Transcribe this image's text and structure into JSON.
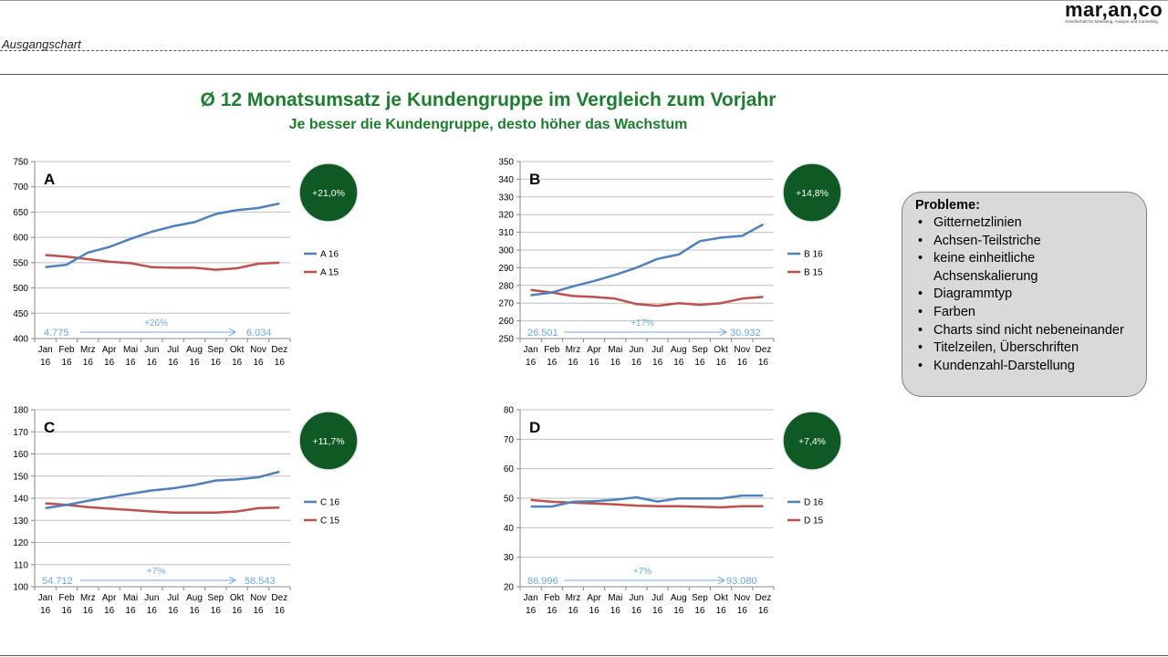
{
  "header": {
    "section_label": "Ausgangschart",
    "logo_text": "mar,an,co",
    "logo_subtitle": "Gesellschaft für Marketing, Analyse und Consulting"
  },
  "title": "Ø 12 Monatsumsatz je Kundengruppe im Vergleich zum Vorjahr",
  "subtitle": "Je besser die Kundengruppe, desto höher das Wachstum",
  "colors": {
    "series_current": "#4f81bd",
    "series_previous": "#c0504d",
    "badge_fill": "#0f5a24",
    "title_green": "#1e7d2f",
    "arrow_text": "#6fa8e0",
    "grid": "#bfbfbf"
  },
  "chart_data": [
    {
      "type": "line",
      "panel_label": "A",
      "categories": [
        "Jan 16",
        "Feb 16",
        "Mrz 16",
        "Apr 16",
        "Mai 16",
        "Jun 16",
        "Jul 16",
        "Aug 16",
        "Sep 16",
        "Okt 16",
        "Nov 16",
        "Dez 16"
      ],
      "ylim": [
        400,
        750
      ],
      "yticks": [
        400,
        450,
        500,
        550,
        600,
        650,
        700,
        750
      ],
      "grid": true,
      "legend_position": "right",
      "series": [
        {
          "name": "A 16",
          "values": [
            541,
            546,
            570,
            581,
            597,
            611,
            622,
            630,
            646,
            654,
            658,
            667
          ]
        },
        {
          "name": "A 15",
          "values": [
            565,
            562,
            557,
            552,
            549,
            541,
            540,
            540,
            536,
            539,
            548,
            550
          ]
        }
      ],
      "badge": "+21,0%",
      "annotation": {
        "start": "4.775",
        "label": "+26%",
        "end": "6.034"
      }
    },
    {
      "type": "line",
      "panel_label": "B",
      "categories": [
        "Jan 16",
        "Feb 16",
        "Mrz 16",
        "Apr 16",
        "Mai 16",
        "Jun 16",
        "Jul 16",
        "Aug 16",
        "Sep 16",
        "Okt 16",
        "Nov 16",
        "Dez 16"
      ],
      "ylim": [
        250,
        350
      ],
      "yticks": [
        250,
        260,
        270,
        280,
        290,
        300,
        310,
        320,
        330,
        340,
        350
      ],
      "grid": true,
      "legend_position": "right",
      "series": [
        {
          "name": "B 16",
          "values": [
            274.5,
            276,
            279.5,
            282.5,
            286,
            290,
            295,
            297.5,
            305,
            307,
            308,
            314.5
          ]
        },
        {
          "name": "B 15",
          "values": [
            277.5,
            276,
            274,
            273.5,
            272.5,
            269.5,
            268.5,
            270,
            269,
            270,
            272.5,
            273.5
          ]
        }
      ],
      "badge": "+14,8%",
      "annotation": {
        "start": "26.501",
        "label": "+17%",
        "end": "30.932"
      }
    },
    {
      "type": "line",
      "panel_label": "C",
      "categories": [
        "Jan 16",
        "Feb 16",
        "Mrz 16",
        "Apr 16",
        "Mai 16",
        "Jun 16",
        "Jul 16",
        "Aug 16",
        "Sep 16",
        "Okt 16",
        "Nov 16",
        "Dez 16"
      ],
      "ylim": [
        100,
        180
      ],
      "yticks": [
        100,
        110,
        120,
        130,
        140,
        150,
        160,
        170,
        180
      ],
      "grid": true,
      "legend_position": "right",
      "series": [
        {
          "name": "C 16",
          "values": [
            135.5,
            137,
            138.8,
            140.5,
            142,
            143.5,
            144.5,
            146,
            148,
            148.5,
            149.5,
            152
          ]
        },
        {
          "name": "C 15",
          "values": [
            137.7,
            137,
            136,
            135.3,
            134.7,
            134,
            133.5,
            133.5,
            133.5,
            134,
            135.5,
            135.8
          ]
        }
      ],
      "badge": "+11,7%",
      "annotation": {
        "start": "54.712",
        "label": "+7%",
        "end": "58.543"
      }
    },
    {
      "type": "line",
      "panel_label": "D",
      "categories": [
        "Jan 16",
        "Feb 16",
        "Mrz 16",
        "Apr 16",
        "Mai 16",
        "Jun 16",
        "Jul 16",
        "Aug 16",
        "Sep 16",
        "Okt 16",
        "Nov 16",
        "Dez 16"
      ],
      "ylim": [
        20,
        80
      ],
      "yticks": [
        20,
        30,
        40,
        50,
        60,
        70,
        80
      ],
      "grid": true,
      "legend_position": "right",
      "series": [
        {
          "name": "D 16",
          "values": [
            47.2,
            47.2,
            48.8,
            49,
            49.5,
            50.3,
            48.9,
            49.9,
            49.9,
            49.9,
            50.9,
            50.9
          ]
        },
        {
          "name": "D 15",
          "values": [
            49.4,
            48.8,
            48.5,
            48.2,
            47.9,
            47.5,
            47.3,
            47.3,
            47.1,
            46.9,
            47.3,
            47.3
          ]
        }
      ],
      "badge": "+7,4%",
      "annotation": {
        "start": "86.996",
        "label": "+7%",
        "end": "93.080"
      }
    }
  ],
  "problems": {
    "title": "Probleme:",
    "items": [
      "Gitternetzlinien",
      "Achsen-Teilstriche",
      "keine einheitliche Achsenskalierung",
      "Diagrammtyp",
      "Farben",
      "Charts sind nicht nebeneinander",
      "Titelzeilen, Überschriften",
      "Kundenzahl-Darstellung"
    ]
  }
}
